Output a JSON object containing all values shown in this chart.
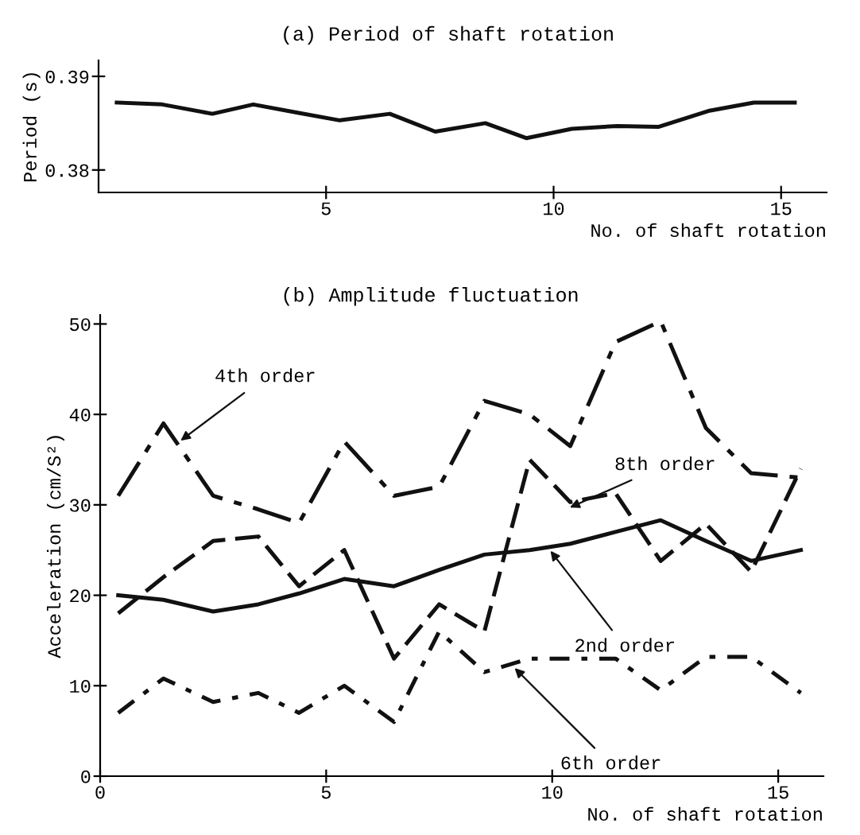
{
  "chart_data": [
    {
      "type": "line",
      "title": "(a) Period of shaft rotation",
      "xlabel": "No. of shaft rotation",
      "ylabel": "Period (s)",
      "x": [
        0.4,
        1.4,
        2.5,
        3.4,
        4.4,
        5.3,
        6.4,
        7.4,
        8.5,
        9.4,
        10.4,
        11.4,
        12.3,
        13.4,
        14.4,
        15.3
      ],
      "series": [
        {
          "color": "#111111",
          "line_style": "solid",
          "values": [
            0.3872,
            0.387,
            0.386,
            0.387,
            0.3861,
            0.3853,
            0.386,
            0.3841,
            0.385,
            0.3834,
            0.3844,
            0.3847,
            0.3846,
            0.3863,
            0.3872,
            0.3872
          ]
        }
      ],
      "xlim": [
        0,
        16
      ],
      "xticks": [
        5,
        10,
        15
      ],
      "ylim": [
        0.3776,
        0.3917
      ],
      "yticks": [
        0.38,
        0.39
      ],
      "grid": false,
      "legend": false,
      "marker": "none"
    },
    {
      "type": "line",
      "title": "(b) Amplitude fluctuation",
      "xlabel": "No. of shaft rotation",
      "ylabel": "Acceleration (cm/S²)",
      "x": [
        0.4,
        1.4,
        2.5,
        3.5,
        4.4,
        5.4,
        6.5,
        7.5,
        8.5,
        9.5,
        10.4,
        11.4,
        12.4,
        13.4,
        14.4,
        15.5
      ],
      "series": [
        {
          "color": "#111111",
          "line_style": "dashdot",
          "values": [
            31,
            39,
            31,
            29.5,
            28,
            37,
            31,
            32,
            41.5,
            40,
            36.5,
            48,
            50.3,
            38.5,
            33.5,
            33
          ]
        },
        {
          "color": "#111111",
          "line_style": "dashed",
          "values": [
            18,
            22,
            26,
            26.5,
            21,
            25,
            13,
            19,
            16,
            35,
            30.3,
            31.3,
            23.8,
            27.9,
            22.6,
            34
          ]
        },
        {
          "color": "#111111",
          "line_style": "solid",
          "values": [
            20,
            19.5,
            18.2,
            19,
            20.2,
            21.8,
            21,
            22.8,
            24.5,
            25,
            25.7,
            27,
            28.3,
            26,
            23.8,
            25
          ]
        },
        {
          "color": "#111111",
          "line_style": "dotted",
          "values": [
            7,
            10.8,
            8.2,
            9.2,
            7,
            10,
            6,
            16,
            11.5,
            13,
            13,
            13,
            9.5,
            13.2,
            13.2,
            9.2
          ]
        }
      ],
      "annotations": [
        {
          "text": "4th order",
          "x": 1.7,
          "y": 36.8
        },
        {
          "text": "8th order",
          "x": 10.3,
          "y": 29.5
        },
        {
          "text": "2nd order",
          "x": 9.9,
          "y": 25.3
        },
        {
          "text": "6th order",
          "x": 9.1,
          "y": 12.3
        }
      ],
      "xlim": [
        0,
        16
      ],
      "xticks": [
        0,
        5,
        10,
        15
      ],
      "ylim": [
        0,
        51
      ],
      "yticks": [
        0,
        10,
        20,
        30,
        40,
        50
      ],
      "grid": false,
      "legend": false,
      "marker": "none"
    }
  ]
}
